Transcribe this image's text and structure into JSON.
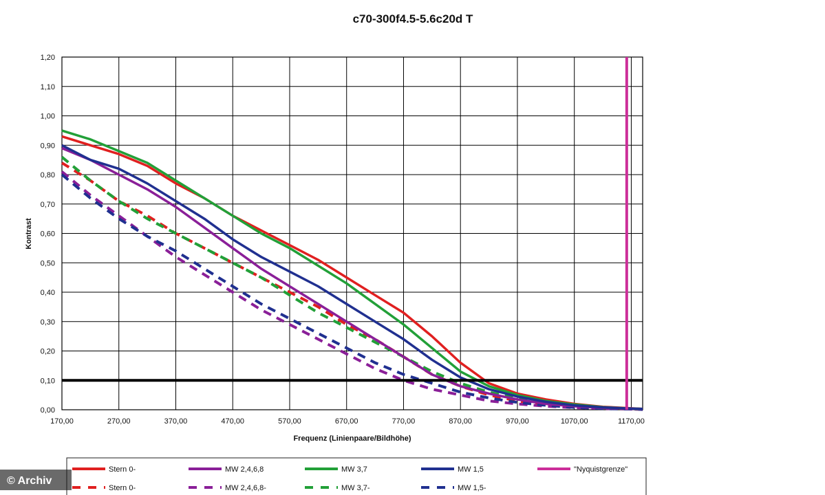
{
  "chart_data": {
    "type": "line",
    "title": "c70-300f4.5-5.6c20d T",
    "xlabel": "Frequenz (Linienpaare/Bildhöhe)",
    "ylabel": "Kontrast",
    "xlim": [
      170,
      1190
    ],
    "ylim": [
      0,
      1.2
    ],
    "x_ticks": [
      "170,00",
      "270,00",
      "370,00",
      "470,00",
      "570,00",
      "670,00",
      "770,00",
      "870,00",
      "970,00",
      "1070,00",
      "1170,00"
    ],
    "y_ticks": [
      "0,00",
      "0,10",
      "0,20",
      "0,30",
      "0,40",
      "0,50",
      "0,60",
      "0,70",
      "0,80",
      "0,90",
      "1,00",
      "1,10",
      "1,20"
    ],
    "grid": true,
    "threshold": {
      "y": 0.1,
      "color": "#000000"
    },
    "nyquist": {
      "x": 1162,
      "color": "#cc2e99"
    },
    "x": [
      170,
      220,
      270,
      320,
      370,
      420,
      470,
      520,
      570,
      620,
      670,
      720,
      770,
      820,
      870,
      920,
      970,
      1020,
      1070,
      1120,
      1170,
      1190
    ],
    "series": [
      {
        "name": "Stern 0-",
        "color": "#e02020",
        "dash": false,
        "values": [
          0.93,
          0.9,
          0.87,
          0.83,
          0.77,
          0.72,
          0.66,
          0.61,
          0.56,
          0.51,
          0.45,
          0.39,
          0.33,
          0.25,
          0.16,
          0.09,
          0.055,
          0.035,
          0.02,
          0.01,
          0.005,
          0.003
        ]
      },
      {
        "name": "MW 2,4,6,8",
        "color": "#8a1f98",
        "dash": false,
        "values": [
          0.89,
          0.85,
          0.8,
          0.75,
          0.69,
          0.62,
          0.55,
          0.48,
          0.42,
          0.36,
          0.3,
          0.24,
          0.18,
          0.12,
          0.08,
          0.055,
          0.035,
          0.02,
          0.012,
          0.006,
          0.003,
          0.002
        ]
      },
      {
        "name": "MW 3,7",
        "color": "#22a038",
        "dash": false,
        "values": [
          0.95,
          0.92,
          0.88,
          0.84,
          0.78,
          0.72,
          0.66,
          0.6,
          0.55,
          0.49,
          0.43,
          0.36,
          0.29,
          0.21,
          0.13,
          0.08,
          0.05,
          0.03,
          0.018,
          0.009,
          0.004,
          0.003
        ]
      },
      {
        "name": "MW 1,5",
        "color": "#203090",
        "dash": false,
        "values": [
          0.9,
          0.85,
          0.82,
          0.77,
          0.71,
          0.65,
          0.58,
          0.52,
          0.47,
          0.42,
          0.36,
          0.3,
          0.24,
          0.17,
          0.11,
          0.07,
          0.045,
          0.027,
          0.015,
          0.008,
          0.004,
          0.003
        ]
      },
      {
        "name": "Stern 0-",
        "color": "#e02020",
        "dash": true,
        "values": [
          0.84,
          0.78,
          0.71,
          0.66,
          0.6,
          0.55,
          0.5,
          0.45,
          0.4,
          0.35,
          0.29,
          0.24,
          0.18,
          0.12,
          0.08,
          0.05,
          0.03,
          0.018,
          0.01,
          0.005,
          0.003,
          0.002
        ]
      },
      {
        "name": "MW 2,4,6,8-",
        "color": "#8a1f98",
        "dash": true,
        "values": [
          0.81,
          0.73,
          0.66,
          0.59,
          0.52,
          0.46,
          0.4,
          0.34,
          0.29,
          0.24,
          0.19,
          0.14,
          0.1,
          0.07,
          0.05,
          0.03,
          0.02,
          0.012,
          0.007,
          0.004,
          0.002,
          0.001
        ]
      },
      {
        "name": "MW 3,7-",
        "color": "#22a038",
        "dash": true,
        "values": [
          0.86,
          0.78,
          0.71,
          0.65,
          0.6,
          0.55,
          0.5,
          0.45,
          0.39,
          0.33,
          0.28,
          0.23,
          0.18,
          0.13,
          0.09,
          0.06,
          0.04,
          0.025,
          0.014,
          0.007,
          0.003,
          0.002
        ]
      },
      {
        "name": "MW 1,5-",
        "color": "#203090",
        "dash": true,
        "values": [
          0.8,
          0.72,
          0.65,
          0.59,
          0.54,
          0.48,
          0.42,
          0.36,
          0.31,
          0.26,
          0.21,
          0.16,
          0.12,
          0.09,
          0.06,
          0.04,
          0.025,
          0.015,
          0.008,
          0.004,
          0.002,
          0.001
        ]
      }
    ],
    "legend": {
      "placement": "bottom",
      "row1": [
        {
          "label": "Stern 0-",
          "color": "#e02020",
          "dash": false
        },
        {
          "label": "MW 2,4,6,8",
          "color": "#8a1f98",
          "dash": false
        },
        {
          "label": "MW 3,7",
          "color": "#22a038",
          "dash": false
        },
        {
          "label": "MW 1,5",
          "color": "#203090",
          "dash": false
        },
        {
          "label": "\"Nyquistgrenze\"",
          "color": "#cc2e99",
          "dash": false
        }
      ],
      "row2": [
        {
          "label": "Stern 0-",
          "color": "#e02020",
          "dash": true
        },
        {
          "label": "MW 2,4,6,8-",
          "color": "#8a1f98",
          "dash": true
        },
        {
          "label": "MW 3,7-",
          "color": "#22a038",
          "dash": true
        },
        {
          "label": "MW 1,5-",
          "color": "#203090",
          "dash": true
        }
      ]
    }
  },
  "watermark": "© Archiv"
}
